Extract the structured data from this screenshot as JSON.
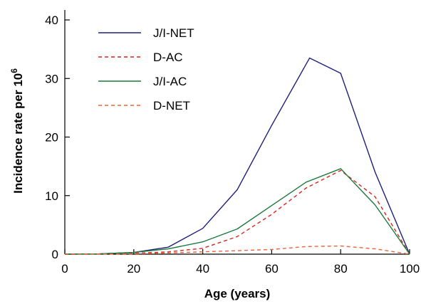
{
  "chart_data": {
    "type": "line",
    "title": "",
    "xlabel": "Age (years)",
    "ylabel_main": "Incidence rate per 10",
    "ylabel_sup": "6",
    "xlim": [
      0,
      100
    ],
    "ylim": [
      0,
      40
    ],
    "xticks": [
      0,
      20,
      40,
      60,
      80,
      100
    ],
    "yticks": [
      0,
      10,
      20,
      30,
      40
    ],
    "grid": false,
    "legend_position": "top-left",
    "series": [
      {
        "name": "J/I-NET",
        "color": "#1f1f7a",
        "dash": "solid",
        "x": [
          0,
          10,
          20,
          30,
          40,
          50,
          60,
          71,
          80,
          90,
          100
        ],
        "y": [
          0,
          0.05,
          0.3,
          1.2,
          4.4,
          11.0,
          22.0,
          33.5,
          30.9,
          14.0,
          0
        ]
      },
      {
        "name": "D-AC",
        "color": "#d6241d",
        "dash": "dashed",
        "x": [
          0,
          10,
          20,
          30,
          40,
          50,
          60,
          70,
          80,
          90,
          100
        ],
        "y": [
          0,
          0.02,
          0.15,
          0.4,
          1.0,
          3.0,
          6.8,
          11.3,
          14.3,
          9.8,
          0
        ]
      },
      {
        "name": "J/I-AC",
        "color": "#1d7a3a",
        "dash": "solid",
        "x": [
          0,
          10,
          20,
          30,
          40,
          50,
          60,
          70,
          80,
          90,
          100
        ],
        "y": [
          0,
          0.05,
          0.3,
          0.9,
          2.1,
          4.3,
          8.3,
          12.3,
          14.6,
          8.4,
          0
        ]
      },
      {
        "name": "D-NET",
        "color": "#e8643c",
        "dash": "dashed",
        "x": [
          0,
          10,
          20,
          30,
          40,
          50,
          60,
          70,
          80,
          90,
          100
        ],
        "y": [
          0,
          0.01,
          0.05,
          0.2,
          0.4,
          0.6,
          0.8,
          1.3,
          1.4,
          0.9,
          0
        ]
      }
    ]
  }
}
